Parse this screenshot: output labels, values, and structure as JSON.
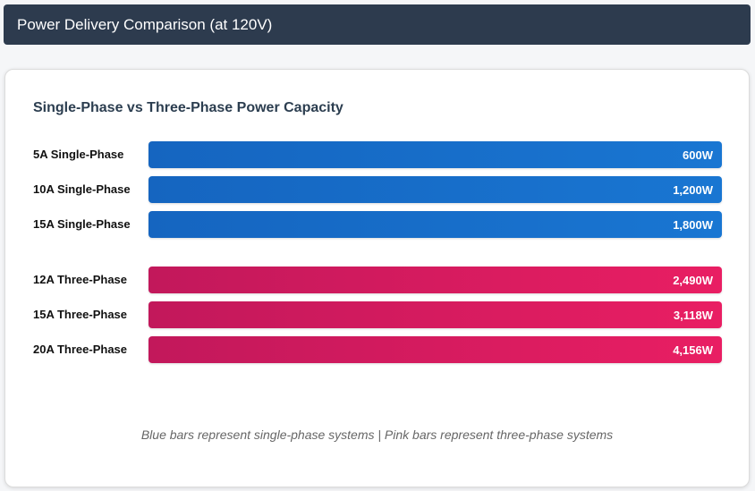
{
  "header": {
    "title": "Power Delivery Comparison (at 120V)"
  },
  "card": {
    "title": "Single-Phase vs Three-Phase Power Capacity",
    "groups": [
      {
        "rows": [
          {
            "label": "5A Single-Phase",
            "value": "600W"
          },
          {
            "label": "10A Single-Phase",
            "value": "1,200W"
          },
          {
            "label": "15A Single-Phase",
            "value": "1,800W"
          }
        ]
      },
      {
        "rows": [
          {
            "label": "12A Three-Phase",
            "value": "2,490W"
          },
          {
            "label": "15A Three-Phase",
            "value": "3,118W"
          },
          {
            "label": "20A Three-Phase",
            "value": "4,156W"
          }
        ]
      }
    ],
    "note": "Blue bars represent single-phase systems | Pink bars represent three-phase systems"
  }
}
